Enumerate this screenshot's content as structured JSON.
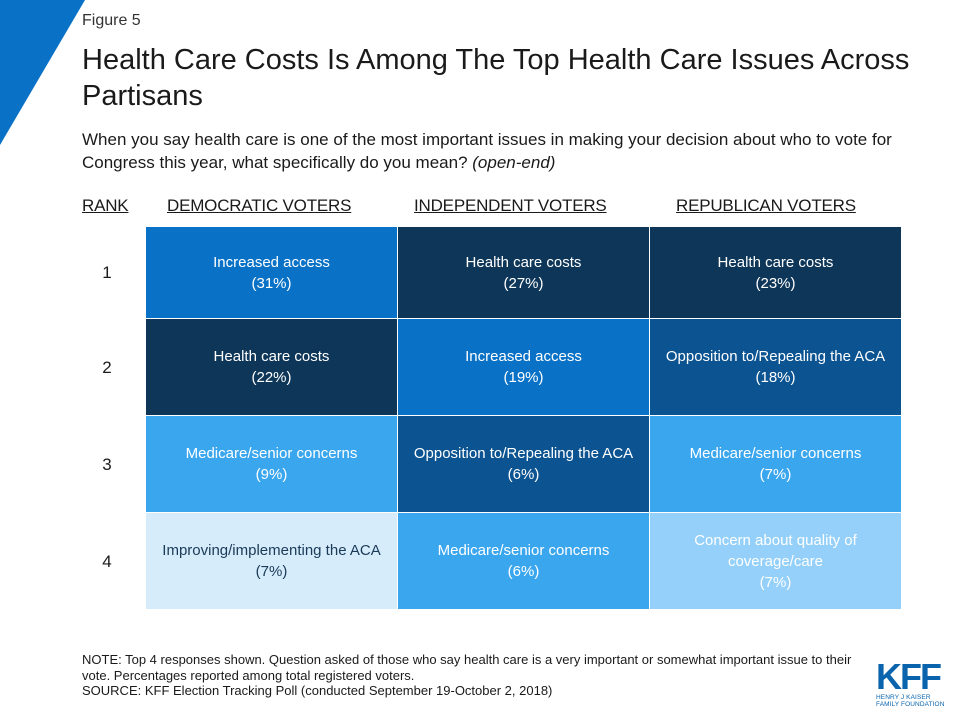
{
  "figure_label": "Figure 5",
  "title": "Health Care Costs Is Among The Top Health Care Issues Across Partisans",
  "subtitle": {
    "text": "When you say health care is one of the most important issues in making your decision about who to vote for Congress this year, what specifically do you mean?",
    "emphasis": "(open-end)"
  },
  "chart_data": {
    "type": "table",
    "rank_header": "RANK",
    "columns": [
      "DEMOCRATIC VOTERS",
      "INDEPENDENT VOTERS",
      "REPUBLICAN VOTERS"
    ],
    "rows": [
      {
        "rank": "1",
        "cells": [
          {
            "label": "Increased access",
            "pct": "(31%)",
            "value": 31,
            "color": "#0a72c6"
          },
          {
            "label": "Health care costs",
            "pct": "(27%)",
            "value": 27,
            "color": "#0d3658"
          },
          {
            "label": "Health care costs",
            "pct": "(23%)",
            "value": 23,
            "color": "#0d3658"
          }
        ]
      },
      {
        "rank": "2",
        "cells": [
          {
            "label": "Health care costs",
            "pct": "(22%)",
            "value": 22,
            "color": "#0d3658"
          },
          {
            "label": "Increased access",
            "pct": "(19%)",
            "value": 19,
            "color": "#0a72c6"
          },
          {
            "label": "Opposition to/Repealing the ACA",
            "pct": "(18%)",
            "value": 18,
            "color": "#0b5391"
          }
        ]
      },
      {
        "rank": "3",
        "cells": [
          {
            "label": "Medicare/senior concerns",
            "pct": "(9%)",
            "value": 9,
            "color": "#3aa6ee"
          },
          {
            "label": "Opposition to/Repealing the ACA",
            "pct": "(6%)",
            "value": 6,
            "color": "#0b5391"
          },
          {
            "label": "Medicare/senior concerns",
            "pct": "(7%)",
            "value": 7,
            "color": "#3aa6ee"
          }
        ]
      },
      {
        "rank": "4",
        "cells": [
          {
            "label": "Improving/implementing the ACA",
            "pct": "(7%)",
            "value": 7,
            "color": "#d6ecfb"
          },
          {
            "label": "Medicare/senior concerns",
            "pct": "(6%)",
            "value": 6,
            "color": "#3aa6ee"
          },
          {
            "label": "Concern about quality of coverage/care",
            "pct": "(7%)",
            "value": 7,
            "color": "#94d0fa"
          }
        ]
      }
    ]
  },
  "note": "NOTE: Top 4 responses shown. Question asked of those who say health care is a very important or somewhat important issue to their vote. Percentages reported among total registered voters.",
  "source": "SOURCE: KFF Election Tracking Poll (conducted September 19-October 2, 2018)",
  "logo": {
    "letters": "KFF",
    "line1": "HENRY J KAISER",
    "line2": "FAMILY FOUNDATION"
  },
  "colors": {
    "accent_corner": "#0a72c6",
    "dark_navy": "#0d3658",
    "medium_blue": "#0b5391",
    "bright_blue": "#0a72c6",
    "sky_blue": "#3aa6ee",
    "light_blue": "#94d0fa",
    "pale_blue": "#d6ecfb",
    "logo_blue": "#0a64ad"
  }
}
